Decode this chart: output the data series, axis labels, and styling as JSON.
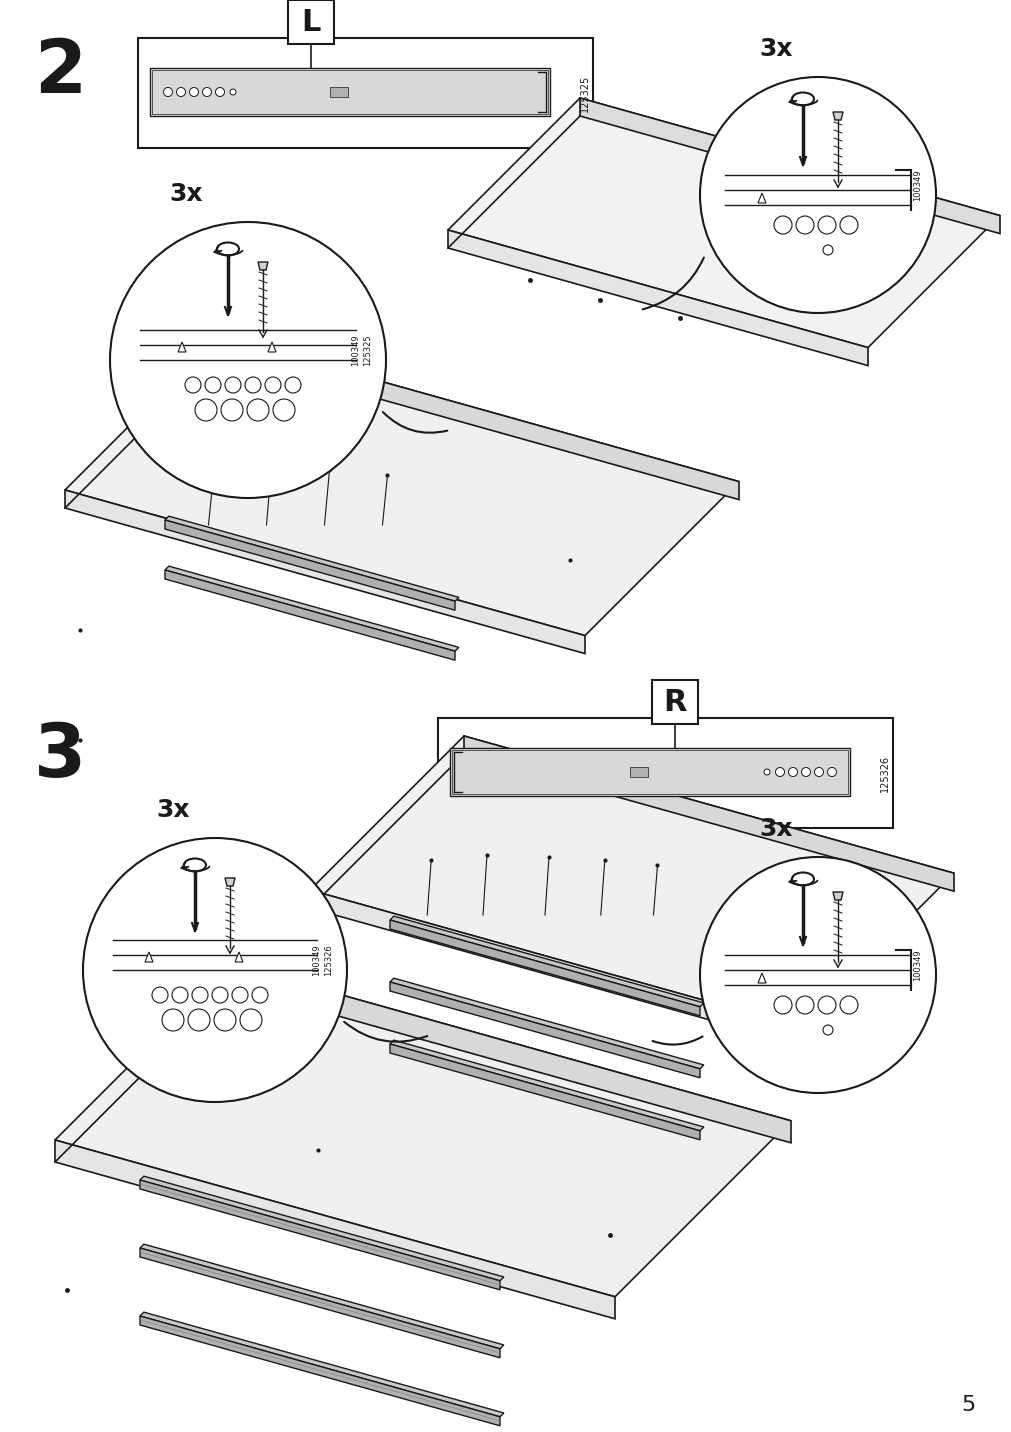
{
  "page_number": "5",
  "step2_label": "2",
  "step3_label": "3",
  "part_L_label": "L",
  "part_R_label": "R",
  "part_L_code": "125325",
  "part_R_code": "125326",
  "screw_code": "100349",
  "count_label": "3x",
  "bg_color": "#ffffff",
  "lc": "#1a1a1a"
}
